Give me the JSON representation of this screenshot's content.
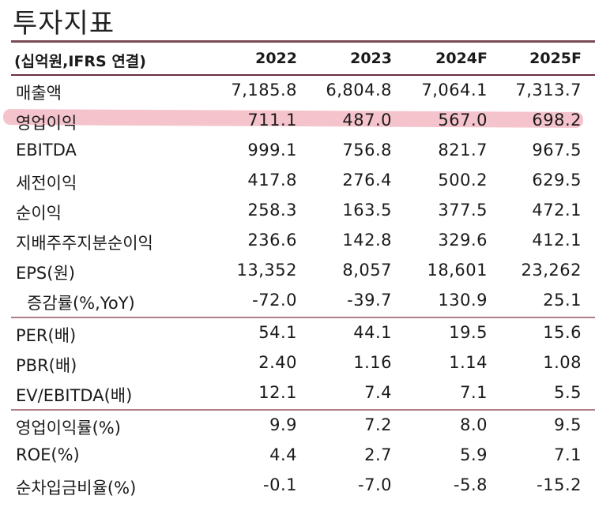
{
  "title": "투자지표",
  "header": {
    "label": "(십억원,IFRS 연결)",
    "years": [
      "2022",
      "2023",
      "2024F",
      "2025F"
    ]
  },
  "rows": [
    {
      "label": "매출액",
      "values": [
        "7,185.8",
        "6,804.8",
        "7,064.1",
        "7,313.7"
      ]
    },
    {
      "label": "영업이익",
      "values": [
        "711.1",
        "487.0",
        "567.0",
        "698.2"
      ]
    },
    {
      "label": "EBITDA",
      "values": [
        "999.1",
        "756.8",
        "821.7",
        "967.5"
      ]
    },
    {
      "label": "세전이익",
      "values": [
        "417.8",
        "276.4",
        "500.2",
        "629.5"
      ]
    },
    {
      "label": "순이익",
      "values": [
        "258.3",
        "163.5",
        "377.5",
        "472.1"
      ]
    },
    {
      "label": "지배주주지분순이익",
      "values": [
        "236.6",
        "142.8",
        "329.6",
        "412.1"
      ]
    },
    {
      "label": "EPS(원)",
      "values": [
        "13,352",
        "8,057",
        "18,601",
        "23,262"
      ]
    },
    {
      "label": "증감률(%,YoY)",
      "values": [
        "-72.0",
        "-39.7",
        "130.9",
        "25.1"
      ]
    },
    {
      "label": "PER(배)",
      "values": [
        "54.1",
        "44.1",
        "19.5",
        "15.6"
      ]
    },
    {
      "label": "PBR(배)",
      "values": [
        "2.40",
        "1.16",
        "1.14",
        "1.08"
      ]
    },
    {
      "label": "EV/EBITDA(배)",
      "values": [
        "12.1",
        "7.4",
        "7.1",
        "5.5"
      ]
    },
    {
      "label": "영업이익률(%)",
      "values": [
        "9.9",
        "7.2",
        "8.0",
        "9.5"
      ]
    },
    {
      "label": "ROE(%)",
      "values": [
        "4.4",
        "2.7",
        "5.9",
        "7.1"
      ]
    },
    {
      "label": "순차입금비율(%)",
      "values": [
        "-0.1",
        "-7.0",
        "-5.8",
        "-15.2"
      ]
    }
  ],
  "colors": {
    "highlight": "#f3b9c3",
    "rule": "#7a4a55"
  }
}
